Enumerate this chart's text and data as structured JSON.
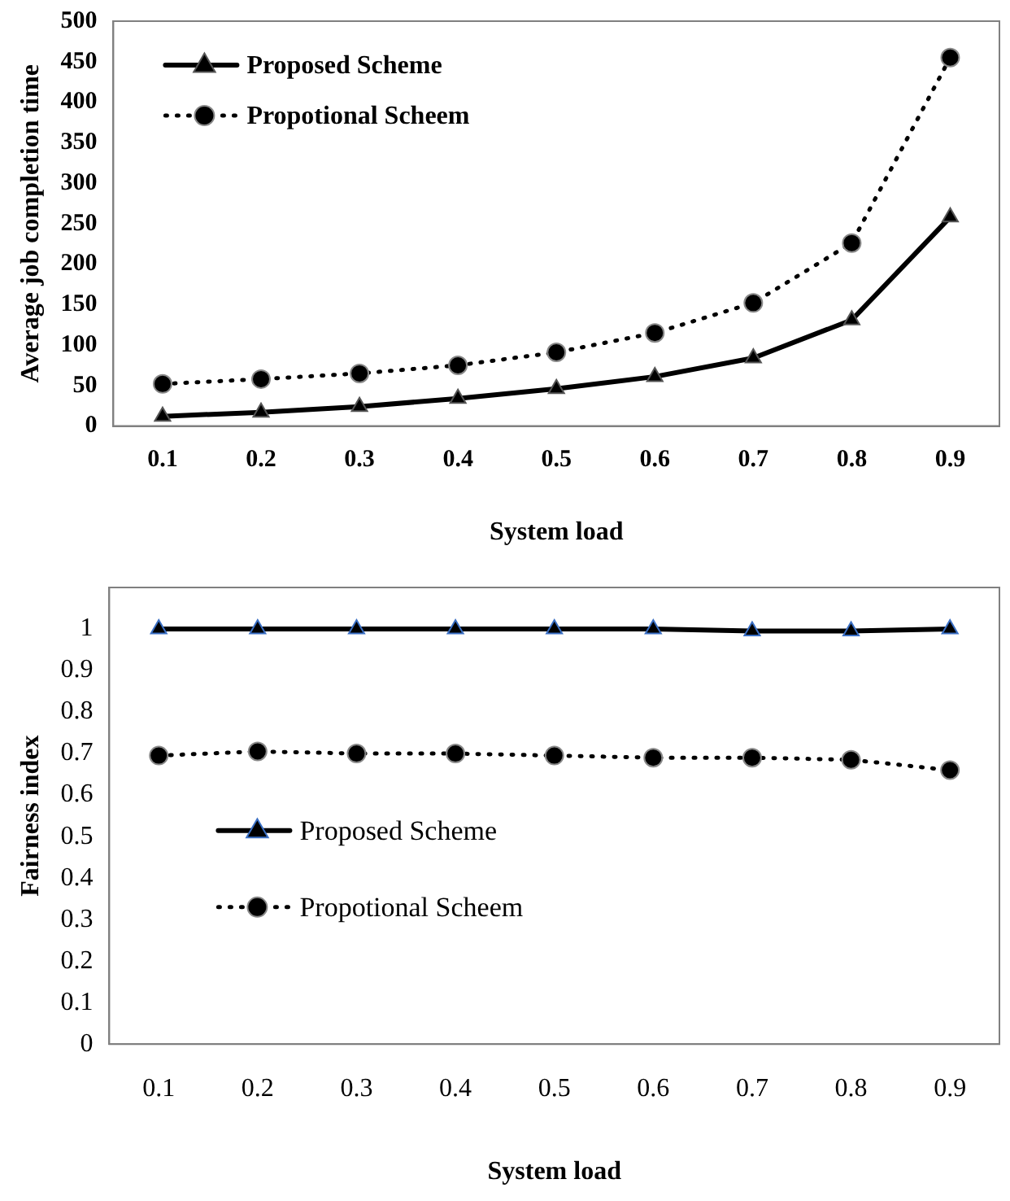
{
  "chart_data": [
    {
      "type": "line",
      "xlabel": "System load",
      "ylabel": "Average job completion time",
      "categories": [
        "0.1",
        "0.2",
        "0.3",
        "0.4",
        "0.5",
        "0.6",
        "0.7",
        "0.8",
        "0.9"
      ],
      "series": [
        {
          "name": "Proposed Scheme",
          "color": "#000000",
          "marker": "triangle",
          "line_style": "solid",
          "values": [
            12,
            17,
            24,
            34,
            46,
            61,
            84,
            131,
            258
          ]
        },
        {
          "name": "Propotional Scheem",
          "color": "#000000",
          "marker": "circle",
          "line_style": "dotted",
          "values": [
            52,
            58,
            65,
            75,
            91,
            115,
            152,
            226,
            455
          ]
        }
      ],
      "ylim": [
        0,
        500
      ],
      "yticks": [
        0,
        50,
        100,
        150,
        200,
        250,
        300,
        350,
        400,
        450,
        500
      ],
      "grid": false,
      "legend": "top left"
    },
    {
      "type": "line",
      "xlabel": "System load",
      "ylabel": "Fairness index",
      "categories": [
        "0.1",
        "0.2",
        "0.3",
        "0.4",
        "0.5",
        "0.6",
        "0.7",
        "0.8",
        "0.9"
      ],
      "series": [
        {
          "name": "Proposed Scheme",
          "color": "#000000",
          "marker": "triangle",
          "line_style": "solid",
          "values": [
            1,
            1,
            1,
            1,
            1,
            1,
            0.995,
            0.995,
            1
          ]
        },
        {
          "name": "Propotional Scheem",
          "color": "#000000",
          "marker": "circle",
          "line_style": "dotted",
          "values": [
            0.695,
            0.705,
            0.7,
            0.7,
            0.695,
            0.69,
            0.69,
            0.685,
            0.66
          ]
        }
      ],
      "ylim": [
        0,
        1.1
      ],
      "yticks": [
        0,
        0.1,
        0.2,
        0.3,
        0.4,
        0.5,
        0.6,
        0.7,
        0.8,
        0.9,
        1
      ],
      "grid": false,
      "legend": "bottom left"
    }
  ]
}
